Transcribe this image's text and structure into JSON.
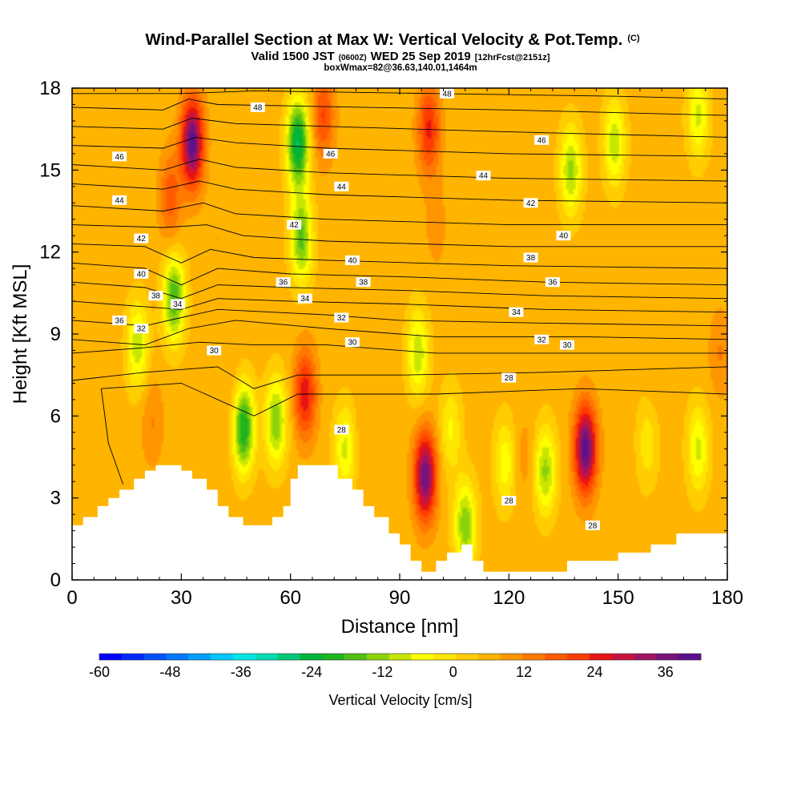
{
  "chart_data": {
    "type": "heatmap",
    "title": "Wind-Parallel Section at Max W: Vertical Velocity & Pot.Temp.",
    "title_mark": "(C)",
    "subtitle_parts": [
      "Valid 1500 JST",
      "(0600Z)",
      "WED 25 Sep 2019",
      "[12hrFcst@2151z]"
    ],
    "subtitle2": "boxWmax=82@36.63,140.01,1464m",
    "xlabel": "Distance [nm]",
    "ylabel": "Height [Kft MSL]",
    "xlim": [
      0,
      180
    ],
    "ylim": [
      0,
      18
    ],
    "x_ticks": [
      "0",
      "30",
      "60",
      "90",
      "120",
      "150",
      "180"
    ],
    "y_ticks": [
      "0",
      "3",
      "6",
      "9",
      "12",
      "15",
      "18"
    ],
    "x_tick_values": [
      0,
      30,
      60,
      90,
      120,
      150,
      180
    ],
    "y_tick_values": [
      0,
      3,
      6,
      9,
      12,
      15,
      18
    ],
    "colorbar": {
      "label": "Vertical Velocity [cm/s]",
      "tick_labels": [
        "-60",
        "-48",
        "-36",
        "-24",
        "-12",
        "0",
        "12",
        "24",
        "36"
      ],
      "tick_values": [
        -60,
        -48,
        -36,
        -24,
        -12,
        0,
        12,
        24,
        36
      ],
      "range": [
        -60,
        42
      ],
      "colors": [
        "#0000ff",
        "#0028ff",
        "#0050ff",
        "#0078ff",
        "#00a0ff",
        "#00c8ff",
        "#00e6e6",
        "#00dcb4",
        "#00c878",
        "#00b43c",
        "#1eb41e",
        "#50be14",
        "#8cd20a",
        "#c8e600",
        "#ffff00",
        "#ffe600",
        "#ffcd00",
        "#ffb400",
        "#ff9600",
        "#ff7800",
        "#ff5a00",
        "#ff3c00",
        "#e61414",
        "#c8143c",
        "#a01464",
        "#781478",
        "#5a0f8c"
      ]
    },
    "w_centers": [
      {
        "x": 33,
        "z": 16,
        "w": 40
      },
      {
        "x": 27,
        "z": 14,
        "w": 18
      },
      {
        "x": 40,
        "z": 12.5,
        "w": 8
      },
      {
        "x": 50,
        "z": 13,
        "w": 6
      },
      {
        "x": 62,
        "z": 16,
        "w": -26
      },
      {
        "x": 63,
        "z": 12.5,
        "w": -16
      },
      {
        "x": 69,
        "z": 17,
        "w": 20
      },
      {
        "x": 98,
        "z": 16.5,
        "w": 24
      },
      {
        "x": 100,
        "z": 13,
        "w": 10
      },
      {
        "x": 98,
        "z": 10,
        "w": 6
      },
      {
        "x": 137,
        "z": 15,
        "w": -12
      },
      {
        "x": 147,
        "z": 11.5,
        "w": 6
      },
      {
        "x": 149,
        "z": 16,
        "w": -10
      },
      {
        "x": 123,
        "z": 10.5,
        "w": 6
      },
      {
        "x": 172,
        "z": 17,
        "w": -8
      },
      {
        "x": 28,
        "z": 10.3,
        "w": -18
      },
      {
        "x": 18,
        "z": 8.6,
        "w": -10
      },
      {
        "x": 8,
        "z": 7.2,
        "w": 6
      },
      {
        "x": 22,
        "z": 5.8,
        "w": 12
      },
      {
        "x": 45,
        "z": 6.3,
        "w": 10
      },
      {
        "x": 47,
        "z": 5.6,
        "w": -24
      },
      {
        "x": 41,
        "z": 5.2,
        "w": 8
      },
      {
        "x": 56,
        "z": 5.8,
        "w": -14
      },
      {
        "x": 64,
        "z": 6.8,
        "w": 26
      },
      {
        "x": 75,
        "z": 4.8,
        "w": -8
      },
      {
        "x": 80,
        "z": 5.2,
        "w": 8
      },
      {
        "x": 87,
        "z": 3.2,
        "w": 6
      },
      {
        "x": 97,
        "z": 3.8,
        "w": 38
      },
      {
        "x": 95,
        "z": 8.3,
        "w": -10
      },
      {
        "x": 104,
        "z": 5.5,
        "w": -4
      },
      {
        "x": 108,
        "z": 2.0,
        "w": -14
      },
      {
        "x": 112,
        "z": 5.0,
        "w": 6
      },
      {
        "x": 119,
        "z": 4.3,
        "w": -6
      },
      {
        "x": 124,
        "z": 4.5,
        "w": 10
      },
      {
        "x": 130,
        "z": 4.0,
        "w": -12
      },
      {
        "x": 136,
        "z": 5.0,
        "w": 6
      },
      {
        "x": 141,
        "z": 4.8,
        "w": 40
      },
      {
        "x": 150,
        "z": 4.5,
        "w": 8
      },
      {
        "x": 158,
        "z": 5.0,
        "w": -2
      },
      {
        "x": 172,
        "z": 4.8,
        "w": -8
      },
      {
        "x": 178,
        "z": 8.3,
        "w": 12
      },
      {
        "x": 160,
        "z": 7.8,
        "w": 8
      },
      {
        "x": 112,
        "z": 8.5,
        "w": 6
      }
    ],
    "terrain": [
      [
        0,
        2
      ],
      [
        3,
        2
      ],
      [
        3,
        2.3
      ],
      [
        7,
        2.3
      ],
      [
        7,
        2.7
      ],
      [
        10,
        2.7
      ],
      [
        10,
        3
      ],
      [
        13,
        3
      ],
      [
        13,
        3.3
      ],
      [
        17,
        3.3
      ],
      [
        17,
        3.7
      ],
      [
        20,
        3.7
      ],
      [
        20,
        4
      ],
      [
        23,
        4
      ],
      [
        23,
        4.2
      ],
      [
        30,
        4.2
      ],
      [
        30,
        4
      ],
      [
        33,
        4
      ],
      [
        33,
        3.7
      ],
      [
        37,
        3.7
      ],
      [
        37,
        3.3
      ],
      [
        40,
        3.3
      ],
      [
        40,
        2.7
      ],
      [
        43,
        2.7
      ],
      [
        43,
        2.3
      ],
      [
        47,
        2.3
      ],
      [
        47,
        2
      ],
      [
        55,
        2
      ],
      [
        55,
        2.3
      ],
      [
        58,
        2.3
      ],
      [
        58,
        2.7
      ],
      [
        60,
        2.7
      ],
      [
        60,
        3.7
      ],
      [
        62,
        3.7
      ],
      [
        62,
        4.2
      ],
      [
        73,
        4.2
      ],
      [
        73,
        3.7
      ],
      [
        77,
        3.7
      ],
      [
        77,
        3.3
      ],
      [
        80,
        3.3
      ],
      [
        80,
        2.7
      ],
      [
        83,
        2.7
      ],
      [
        83,
        2.3
      ],
      [
        87,
        2.3
      ],
      [
        87,
        1.7
      ],
      [
        90,
        1.7
      ],
      [
        90,
        1.3
      ],
      [
        93,
        1.3
      ],
      [
        93,
        0.7
      ],
      [
        96,
        0.7
      ],
      [
        96,
        0.3
      ],
      [
        100,
        0.3
      ],
      [
        100,
        0.7
      ],
      [
        103,
        0.7
      ],
      [
        103,
        1
      ],
      [
        107,
        1
      ],
      [
        107,
        1.3
      ],
      [
        110,
        1.3
      ],
      [
        110,
        0.7
      ],
      [
        113,
        0.7
      ],
      [
        113,
        0.3
      ],
      [
        136,
        0.3
      ],
      [
        136,
        0.7
      ],
      [
        150,
        0.7
      ],
      [
        150,
        1
      ],
      [
        159,
        1
      ],
      [
        159,
        1.3
      ],
      [
        166,
        1.3
      ],
      [
        166,
        1.7
      ],
      [
        180,
        1.7
      ],
      [
        180,
        0
      ],
      [
        0,
        0
      ]
    ],
    "isentropes": [
      [
        [
          0,
          17.8
        ],
        [
          30,
          17.8
        ],
        [
          50,
          17.9
        ],
        [
          100,
          17.8
        ],
        [
          150,
          17.7
        ],
        [
          180,
          17.6
        ]
      ],
      [
        [
          0,
          17.3
        ],
        [
          25,
          17.2
        ],
        [
          32,
          17.6
        ],
        [
          40,
          17.4
        ],
        [
          80,
          17.3
        ],
        [
          120,
          17.2
        ],
        [
          180,
          17.0
        ]
      ],
      [
        [
          0,
          16.6
        ],
        [
          25,
          16.5
        ],
        [
          33,
          16.9
        ],
        [
          45,
          16.7
        ],
        [
          70,
          16.6
        ],
        [
          120,
          16.4
        ],
        [
          180,
          16.2
        ]
      ],
      [
        [
          0,
          15.9
        ],
        [
          25,
          15.8
        ],
        [
          34,
          16.2
        ],
        [
          45,
          16.0
        ],
        [
          70,
          15.8
        ],
        [
          120,
          15.6
        ],
        [
          180,
          15.5
        ]
      ],
      [
        [
          0,
          15.2
        ],
        [
          25,
          15.0
        ],
        [
          35,
          15.4
        ],
        [
          45,
          15.1
        ],
        [
          70,
          14.9
        ],
        [
          120,
          14.7
        ],
        [
          180,
          14.6
        ]
      ],
      [
        [
          0,
          14.5
        ],
        [
          25,
          14.3
        ],
        [
          35,
          14.6
        ],
        [
          45,
          14.3
        ],
        [
          70,
          14.1
        ],
        [
          120,
          13.9
        ],
        [
          180,
          13.8
        ]
      ],
      [
        [
          0,
          13.7
        ],
        [
          25,
          13.5
        ],
        [
          36,
          13.8
        ],
        [
          45,
          13.4
        ],
        [
          70,
          13.2
        ],
        [
          120,
          13.0
        ],
        [
          180,
          13.0
        ]
      ],
      [
        [
          0,
          13.0
        ],
        [
          25,
          12.9
        ],
        [
          37,
          13.0
        ],
        [
          47,
          12.6
        ],
        [
          70,
          12.4
        ],
        [
          120,
          12.2
        ],
        [
          180,
          12.2
        ]
      ],
      [
        [
          0,
          12.3
        ],
        [
          20,
          12.2
        ],
        [
          30,
          11.6
        ],
        [
          38,
          12.1
        ],
        [
          50,
          11.8
        ],
        [
          70,
          11.7
        ],
        [
          120,
          11.5
        ],
        [
          180,
          11.4
        ]
      ],
      [
        [
          0,
          11.6
        ],
        [
          20,
          11.4
        ],
        [
          30,
          10.8
        ],
        [
          40,
          11.4
        ],
        [
          60,
          11.2
        ],
        [
          90,
          11.1
        ],
        [
          130,
          10.9
        ],
        [
          180,
          10.8
        ]
      ],
      [
        [
          0,
          10.9
        ],
        [
          20,
          10.7
        ],
        [
          30,
          10.3
        ],
        [
          40,
          10.8
        ],
        [
          60,
          10.7
        ],
        [
          90,
          10.6
        ],
        [
          130,
          10.4
        ],
        [
          180,
          10.3
        ]
      ],
      [
        [
          0,
          10.2
        ],
        [
          20,
          10.0
        ],
        [
          30,
          9.9
        ],
        [
          40,
          10.3
        ],
        [
          60,
          10.2
        ],
        [
          90,
          10.1
        ],
        [
          130,
          9.9
        ],
        [
          180,
          9.8
        ]
      ],
      [
        [
          0,
          9.5
        ],
        [
          20,
          9.3
        ],
        [
          30,
          9.6
        ],
        [
          40,
          9.9
        ],
        [
          70,
          9.7
        ],
        [
          90,
          9.5
        ],
        [
          130,
          9.4
        ],
        [
          180,
          9.3
        ]
      ],
      [
        [
          0,
          8.8
        ],
        [
          20,
          8.6
        ],
        [
          32,
          9.2
        ],
        [
          45,
          9.5
        ],
        [
          70,
          9.2
        ],
        [
          100,
          8.9
        ],
        [
          140,
          8.9
        ],
        [
          180,
          8.8
        ]
      ],
      [
        [
          0,
          8.3
        ],
        [
          20,
          8.5
        ],
        [
          35,
          8.7
        ],
        [
          50,
          8.6
        ],
        [
          70,
          8.6
        ],
        [
          100,
          8.3
        ],
        [
          140,
          8.3
        ],
        [
          180,
          8.3
        ]
      ],
      [
        [
          0,
          7.3
        ],
        [
          20,
          7.6
        ],
        [
          40,
          7.8
        ],
        [
          50,
          7.0
        ],
        [
          62,
          7.5
        ],
        [
          90,
          7.5
        ],
        [
          130,
          7.6
        ],
        [
          180,
          7.8
        ]
      ],
      [
        [
          14,
          3.5
        ],
        [
          10,
          5.0
        ],
        [
          8,
          7.0
        ],
        [
          30,
          7.2
        ],
        [
          50,
          6.0
        ],
        [
          62,
          6.8
        ],
        [
          100,
          6.8
        ],
        [
          140,
          7.0
        ],
        [
          180,
          6.8
        ]
      ]
    ],
    "contour_labels": [
      {
        "text": "48",
        "x": 51,
        "z": 17.3
      },
      {
        "text": "48",
        "x": 103,
        "z": 17.8
      },
      {
        "text": "46",
        "x": 13,
        "z": 15.5
      },
      {
        "text": "46",
        "x": 71,
        "z": 15.6
      },
      {
        "text": "46",
        "x": 129,
        "z": 16.1
      },
      {
        "text": "44",
        "x": 13,
        "z": 13.9
      },
      {
        "text": "44",
        "x": 74,
        "z": 14.4
      },
      {
        "text": "44",
        "x": 113,
        "z": 14.8
      },
      {
        "text": "42",
        "x": 19,
        "z": 12.5
      },
      {
        "text": "42",
        "x": 61,
        "z": 13.0
      },
      {
        "text": "42",
        "x": 126,
        "z": 13.8
      },
      {
        "text": "40",
        "x": 19,
        "z": 11.2
      },
      {
        "text": "40",
        "x": 77,
        "z": 11.7
      },
      {
        "text": "40",
        "x": 135,
        "z": 12.6
      },
      {
        "text": "38",
        "x": 23,
        "z": 10.4
      },
      {
        "text": "38",
        "x": 80,
        "z": 10.9
      },
      {
        "text": "38",
        "x": 126,
        "z": 11.8
      },
      {
        "text": "36",
        "x": 13,
        "z": 9.5
      },
      {
        "text": "36",
        "x": 58,
        "z": 10.9
      },
      {
        "text": "36",
        "x": 132,
        "z": 10.9
      },
      {
        "text": "34",
        "x": 29,
        "z": 10.1
      },
      {
        "text": "34",
        "x": 64,
        "z": 10.3
      },
      {
        "text": "34",
        "x": 122,
        "z": 9.8
      },
      {
        "text": "32",
        "x": 19,
        "z": 9.2
      },
      {
        "text": "32",
        "x": 74,
        "z": 9.6
      },
      {
        "text": "32",
        "x": 129,
        "z": 8.8
      },
      {
        "text": "30",
        "x": 39,
        "z": 8.4
      },
      {
        "text": "30",
        "x": 77,
        "z": 8.7
      },
      {
        "text": "30",
        "x": 136,
        "z": 8.6
      },
      {
        "text": "28",
        "x": 120,
        "z": 7.4
      },
      {
        "text": "28",
        "x": 74,
        "z": 5.5
      },
      {
        "text": "28",
        "x": 120,
        "z": 2.9
      },
      {
        "text": "28",
        "x": 143,
        "z": 2.0
      }
    ]
  }
}
